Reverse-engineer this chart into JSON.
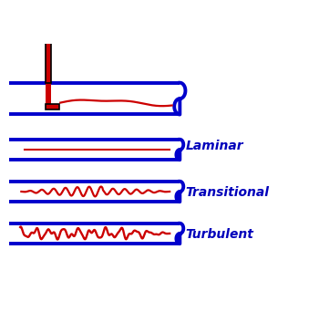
{
  "blue": "#0000CC",
  "red": "#CC0000",
  "white": "#FFFFFF",
  "black": "#000000",
  "label_color": "#0000BB",
  "bg_color": "#FFFFFF",
  "label_laminar": "Laminar",
  "label_transitional": "Transitional",
  "label_turbulent": "Turbulent",
  "label_fontsize": 10,
  "figsize": [
    3.5,
    3.42
  ],
  "dpi": 100,
  "xlim": [
    0,
    10
  ],
  "ylim": [
    0,
    10
  ]
}
